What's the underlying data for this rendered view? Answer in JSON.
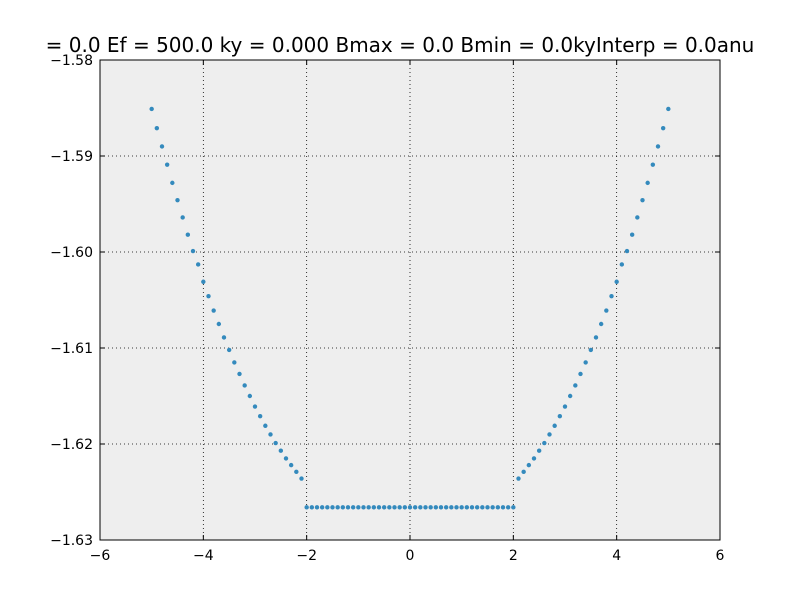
{
  "chart_data": {
    "type": "scatter",
    "title": "= 0.0 Ef = 500.0 ky = 0.000 Bmax = 0.0 Bmin = 0.0kyInterp = 0.0anu",
    "xlabel": "",
    "ylabel": "",
    "xlim": [
      -6,
      6
    ],
    "ylim": [
      -1.63,
      -1.58
    ],
    "xticks": [
      -6,
      -4,
      -2,
      0,
      2,
      4,
      6
    ],
    "xtick_labels": [
      "−6",
      "−4",
      "−2",
      "0",
      "2",
      "4",
      "6"
    ],
    "yticks": [
      -1.58,
      -1.59,
      -1.6,
      -1.61,
      -1.62,
      -1.63
    ],
    "ytick_labels": [
      "−1.58",
      "−1.59",
      "−1.60",
      "−1.61",
      "−1.62",
      "−1.63"
    ],
    "grid": true,
    "background_color": "#eeeeee",
    "marker_color": "#348abd",
    "series": [
      {
        "x": [
          -5.0,
          -4.9,
          -4.8,
          -4.7,
          -4.6,
          -4.5,
          -4.4,
          -4.3,
          -4.2,
          -4.1,
          -4.0,
          -3.9,
          -3.8,
          -3.7,
          -3.6,
          -3.5,
          -3.4,
          -3.3,
          -3.2,
          -3.1,
          -3.0,
          -2.9,
          -2.8,
          -2.7,
          -2.6,
          -2.5,
          -2.4,
          -2.3,
          -2.2,
          -2.1,
          -2.0,
          -1.9,
          -1.8,
          -1.7,
          -1.6,
          -1.5,
          -1.4,
          -1.3,
          -1.2,
          -1.1,
          -1.0,
          -0.9,
          -0.8,
          -0.7,
          -0.6,
          -0.5,
          -0.4,
          -0.3,
          -0.2,
          -0.1,
          0.0,
          0.1,
          0.2,
          0.3,
          0.4,
          0.5,
          0.6,
          0.7,
          0.8,
          0.9,
          1.0,
          1.1,
          1.2,
          1.3,
          1.4,
          1.5,
          1.6,
          1.7,
          1.8,
          1.9,
          2.0,
          2.1,
          2.2,
          2.3,
          2.4,
          2.5,
          2.6,
          2.7,
          2.8,
          2.9,
          3.0,
          3.1,
          3.2,
          3.3,
          3.4,
          3.5,
          3.6,
          3.7,
          3.8,
          3.9,
          4.0,
          4.1,
          4.2,
          4.3,
          4.4,
          4.5,
          4.6,
          4.7,
          4.8,
          4.9,
          5.0
        ],
        "y": [
          -1.5851,
          -1.5871,
          -1.589,
          -1.5909,
          -1.5928,
          -1.5946,
          -1.5964,
          -1.5982,
          -1.5999,
          -1.6013,
          -1.6031,
          -1.6046,
          -1.6061,
          -1.6075,
          -1.6089,
          -1.6102,
          -1.6115,
          -1.6127,
          -1.6139,
          -1.615,
          -1.6161,
          -1.6171,
          -1.6181,
          -1.619,
          -1.6199,
          -1.6207,
          -1.6215,
          -1.6222,
          -1.6229,
          -1.6236,
          -1.6266,
          -1.6266,
          -1.6266,
          -1.6266,
          -1.6266,
          -1.6266,
          -1.6266,
          -1.6266,
          -1.6266,
          -1.6266,
          -1.6266,
          -1.6266,
          -1.6266,
          -1.6266,
          -1.6266,
          -1.6266,
          -1.6266,
          -1.6266,
          -1.6266,
          -1.6266,
          -1.6266,
          -1.6266,
          -1.6266,
          -1.6266,
          -1.6266,
          -1.6266,
          -1.6266,
          -1.6266,
          -1.6266,
          -1.6266,
          -1.6266,
          -1.6266,
          -1.6266,
          -1.6266,
          -1.6266,
          -1.6266,
          -1.6266,
          -1.6266,
          -1.6266,
          -1.6266,
          -1.6266,
          -1.6236,
          -1.6229,
          -1.6222,
          -1.6215,
          -1.6207,
          -1.6199,
          -1.619,
          -1.6181,
          -1.6171,
          -1.6161,
          -1.615,
          -1.6139,
          -1.6127,
          -1.6115,
          -1.6102,
          -1.6089,
          -1.6075,
          -1.6061,
          -1.6046,
          -1.6031,
          -1.6013,
          -1.5999,
          -1.5982,
          -1.5964,
          -1.5946,
          -1.5928,
          -1.5909,
          -1.589,
          -1.5871,
          -1.5851
        ]
      }
    ]
  }
}
